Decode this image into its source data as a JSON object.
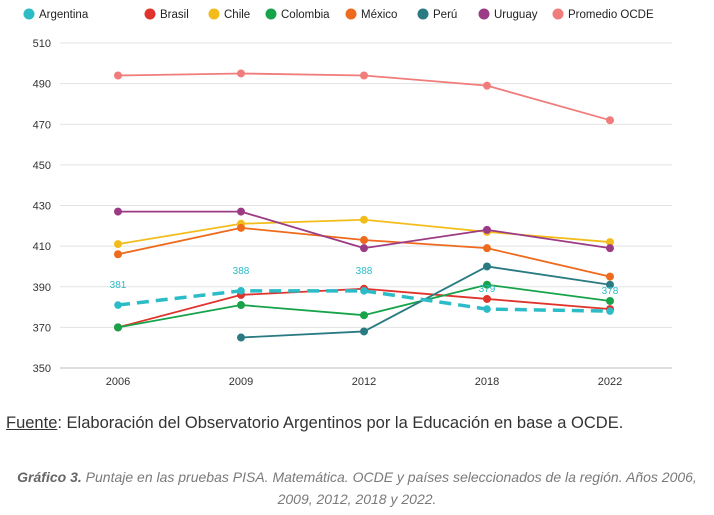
{
  "chart_data": {
    "type": "line",
    "title": "",
    "xlabel": "",
    "ylabel": "",
    "categories": [
      "2006",
      "2009",
      "2012",
      "2018",
      "2022"
    ],
    "ylim": [
      350,
      510
    ],
    "yticks": [
      350,
      370,
      390,
      410,
      430,
      450,
      470,
      490,
      510
    ],
    "grid": true,
    "legend_position": "top",
    "series": [
      {
        "name": "Argentina",
        "color": "#2bbcc7",
        "dashed": true,
        "values": [
          381,
          388,
          388,
          379,
          378
        ],
        "data_labels": [
          "381",
          "388",
          "388",
          "379",
          "378"
        ]
      },
      {
        "name": "Brasil",
        "color": "#e0332c",
        "values": [
          370,
          386,
          389,
          384,
          379
        ]
      },
      {
        "name": "Chile",
        "color": "#f2bd1b",
        "values": [
          411,
          421,
          423,
          417,
          412
        ]
      },
      {
        "name": "Colombia",
        "color": "#17a34a",
        "values": [
          370,
          381,
          376,
          391,
          383
        ]
      },
      {
        "name": "México",
        "color": "#ee6a1c",
        "values": [
          406,
          419,
          413,
          409,
          395
        ]
      },
      {
        "name": "Perú",
        "color": "#2a7a82",
        "values": [
          null,
          365,
          368,
          400,
          391
        ]
      },
      {
        "name": "Uruguay",
        "color": "#9c3b85",
        "values": [
          427,
          427,
          409,
          418,
          409
        ]
      },
      {
        "name": "Promedio OCDE",
        "color": "#f07c7c",
        "values": [
          494,
          495,
          494,
          489,
          472
        ]
      }
    ]
  },
  "source": {
    "label": "Fuente",
    "text": ": Elaboración del Observatorio Argentinos por la Educación en base a OCDE."
  },
  "caption": {
    "label": "Gráfico 3.",
    "text": " Puntaje en las pruebas PISA. Matemática. OCDE y países seleccionados de la región. Años 2006, 2009, 2012, 2018 y 2022."
  }
}
